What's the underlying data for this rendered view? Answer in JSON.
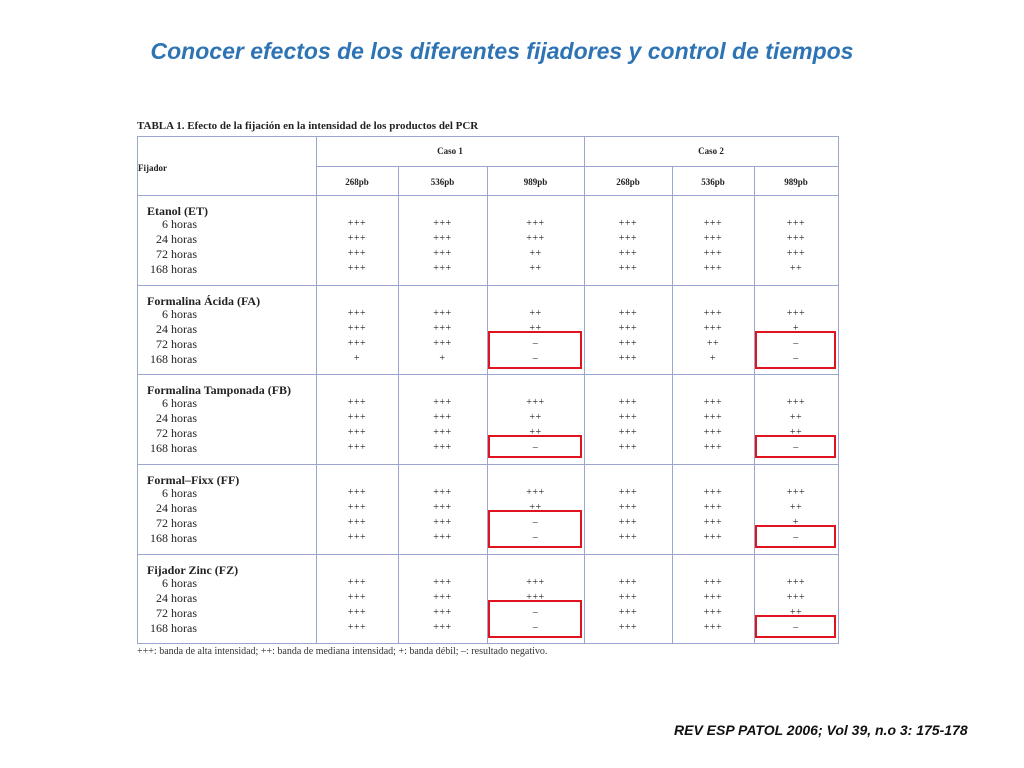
{
  "title": "Conocer efectos de los diferentes fijadores y control de tiempos",
  "table": {
    "caption": "TABLA 1.  Efecto de la fijación en la intensidad de los productos del PCR",
    "fixer_header": "Fijador",
    "cases": [
      "Caso 1",
      "Caso 2"
    ],
    "sizes": [
      "268pb",
      "536pb",
      "989pb",
      "268pb",
      "536pb",
      "989pb"
    ],
    "groups": [
      {
        "name": "Etanol (ET)",
        "rows": [
          {
            "time": "6 horas",
            "values": [
              "+++",
              "+++",
              "+++",
              "+++",
              "+++",
              "+++"
            ]
          },
          {
            "time": "24 horas",
            "values": [
              "+++",
              "+++",
              "+++",
              "+++",
              "+++",
              "+++"
            ]
          },
          {
            "time": "72 horas",
            "values": [
              "+++",
              "+++",
              "++",
              "+++",
              "+++",
              "+++"
            ]
          },
          {
            "time": "168 horas",
            "values": [
              "+++",
              "+++",
              "++",
              "+++",
              "+++",
              "++"
            ]
          }
        ]
      },
      {
        "name": "Formalina Ácida (FA)",
        "rows": [
          {
            "time": "6 horas",
            "values": [
              "+++",
              "+++",
              "++",
              "+++",
              "+++",
              "+++"
            ]
          },
          {
            "time": "24 horas",
            "values": [
              "+++",
              "+++",
              "++",
              "+++",
              "+++",
              "+"
            ]
          },
          {
            "time": "72 horas",
            "values": [
              "+++",
              "+++",
              "–",
              "+++",
              "++",
              "–"
            ]
          },
          {
            "time": "168 horas",
            "values": [
              "+",
              "+",
              "–",
              "+++",
              "+",
              "–"
            ]
          }
        ]
      },
      {
        "name": "Formalina Tamponada (FB)",
        "rows": [
          {
            "time": "6 horas",
            "values": [
              "+++",
              "+++",
              "+++",
              "+++",
              "+++",
              "+++"
            ]
          },
          {
            "time": "24 horas",
            "values": [
              "+++",
              "+++",
              "++",
              "+++",
              "+++",
              "++"
            ]
          },
          {
            "time": "72 horas",
            "values": [
              "+++",
              "+++",
              "++",
              "+++",
              "+++",
              "++"
            ]
          },
          {
            "time": "168 horas",
            "values": [
              "+++",
              "+++",
              "–",
              "+++",
              "+++",
              "–"
            ]
          }
        ]
      },
      {
        "name": "Formal–Fixx (FF)",
        "rows": [
          {
            "time": "6 horas",
            "values": [
              "+++",
              "+++",
              "+++",
              "+++",
              "+++",
              "+++"
            ]
          },
          {
            "time": "24 horas",
            "values": [
              "+++",
              "+++",
              "++",
              "+++",
              "+++",
              "++"
            ]
          },
          {
            "time": "72 horas",
            "values": [
              "+++",
              "+++",
              "–",
              "+++",
              "+++",
              "+"
            ]
          },
          {
            "time": "168 horas",
            "values": [
              "+++",
              "+++",
              "–",
              "+++",
              "+++",
              "–"
            ]
          }
        ]
      },
      {
        "name": "Fijador Zinc (FZ)",
        "rows": [
          {
            "time": "6 horas",
            "values": [
              "+++",
              "+++",
              "+++",
              "+++",
              "+++",
              "+++"
            ]
          },
          {
            "time": "24 horas",
            "values": [
              "+++",
              "+++",
              "+++",
              "+++",
              "+++",
              "+++"
            ]
          },
          {
            "time": "72 horas",
            "values": [
              "+++",
              "+++",
              "–",
              "+++",
              "+++",
              "++"
            ]
          },
          {
            "time": "168 horas",
            "values": [
              "+++",
              "+++",
              "–",
              "+++",
              "+++",
              "–"
            ]
          }
        ]
      }
    ],
    "footnote": "+++: banda de alta intensidad; ++: banda de mediana intensidad; +: banda débil; –: resultado negativo.",
    "highlight_color": "#e0141e",
    "highlights": [
      {
        "group": 1,
        "col": 2,
        "rows": [
          2,
          3
        ]
      },
      {
        "group": 1,
        "col": 5,
        "rows": [
          2,
          3
        ]
      },
      {
        "group": 2,
        "col": 2,
        "rows": [
          3
        ]
      },
      {
        "group": 2,
        "col": 5,
        "rows": [
          3
        ]
      },
      {
        "group": 3,
        "col": 2,
        "rows": [
          2,
          3
        ]
      },
      {
        "group": 3,
        "col": 5,
        "rows": [
          3
        ]
      },
      {
        "group": 4,
        "col": 2,
        "rows": [
          2,
          3
        ]
      },
      {
        "group": 4,
        "col": 5,
        "rows": [
          3
        ]
      }
    ]
  },
  "citation": "REV ESP PATOL 2006; Vol 39, n.o 3: 175-178"
}
